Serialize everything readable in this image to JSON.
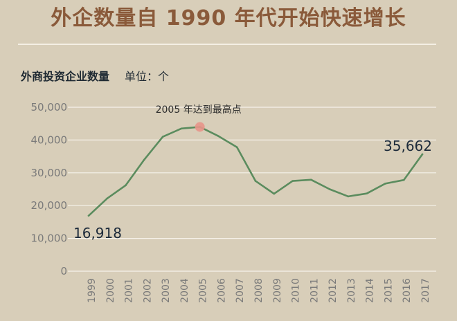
{
  "header": {
    "title": "外企数量自 1990 年代开始快速增长"
  },
  "chart_data": {
    "type": "line",
    "title": "外企数量自 1990 年代开始快速增长",
    "ylabel": "外商投资企业数量",
    "unit_label": "单位：个",
    "x": [
      "1999",
      "2000",
      "2001",
      "2002",
      "2003",
      "2004",
      "2005",
      "2006",
      "2007",
      "2008",
      "2009",
      "2010",
      "2011",
      "2012",
      "2013",
      "2014",
      "2015",
      "2016",
      "2017"
    ],
    "series": [
      {
        "values": [
          16918,
          22200,
          26200,
          34000,
          41000,
          43500,
          44000,
          41200,
          37800,
          27500,
          23600,
          27500,
          27900,
          25000,
          22800,
          23700,
          26700,
          27800,
          35662
        ]
      }
    ],
    "yticks": [
      "0",
      "10,000",
      "20,000",
      "30,000",
      "40,000",
      "50,000"
    ],
    "ylim": [
      0,
      50000
    ],
    "grid": true,
    "line_color": "#5b8c5e",
    "highlight": {
      "x": "2005",
      "color": "#e8958a",
      "label": "2005 年达到最高点"
    },
    "data_labels": {
      "first": "16,918",
      "last": "35,662"
    }
  }
}
